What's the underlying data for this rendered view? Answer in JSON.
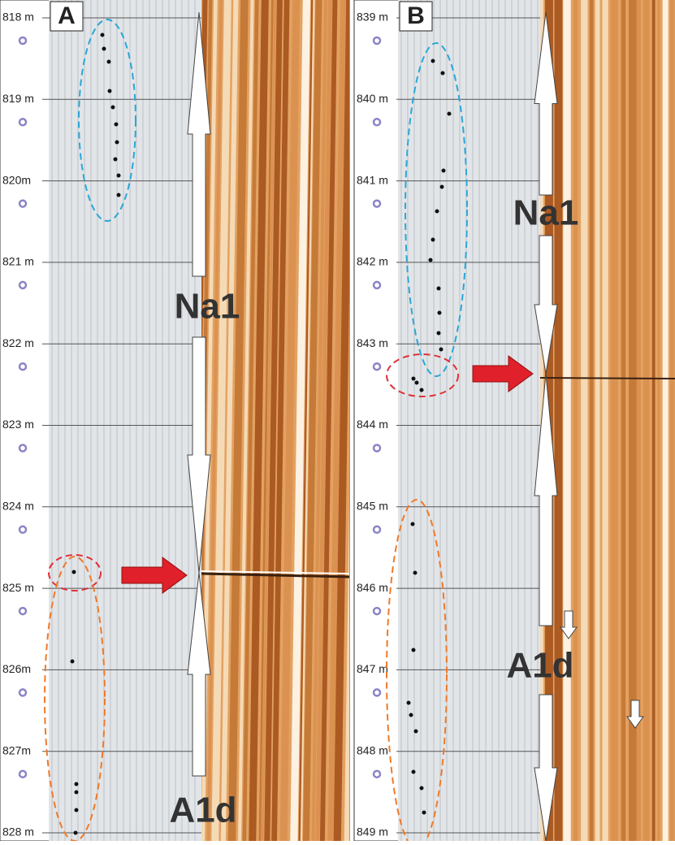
{
  "panels": [
    {
      "label": "A",
      "depths": [
        "818 m",
        "819 m",
        "820m",
        "821 m",
        "822 m",
        "823 m",
        "824 m",
        "825 m",
        "826m",
        "827m",
        "828 m"
      ],
      "annotations": [
        "Na1",
        "A1d"
      ]
    },
    {
      "label": "B",
      "depths": [
        "839 m",
        "840 m",
        "841 m",
        "842 m",
        "843 m",
        "844 m",
        "845 m",
        "846 m",
        "847 m",
        "848 m",
        "849 m"
      ],
      "annotations": [
        "Na1",
        "A1d"
      ]
    }
  ]
}
